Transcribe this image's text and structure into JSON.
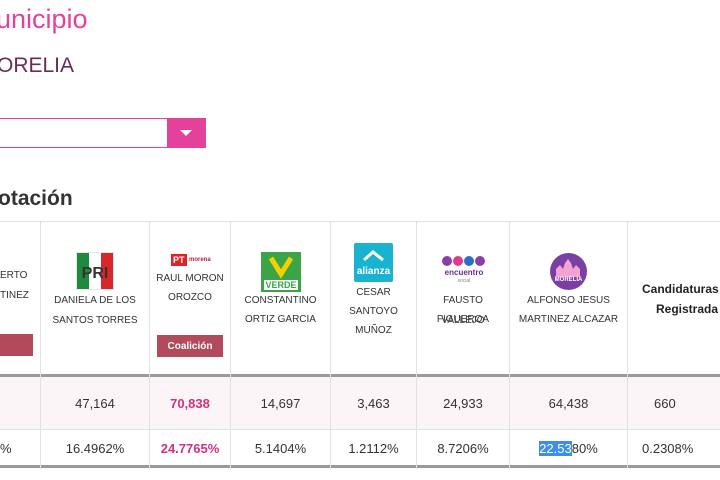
{
  "page": {
    "title": "unicipio",
    "subtitle": "ORELIA",
    "section_title": "otación"
  },
  "colors": {
    "accent": "#e4429a",
    "subtitle": "#6b2b57",
    "winner": "#d0327f",
    "coalition_badge": "#b24a5b",
    "selection": "#3d8ee6"
  },
  "select": {
    "value": "",
    "button_icon": "chevron-down-icon"
  },
  "table": {
    "candidates": [
      {
        "party": "partial-candidate",
        "logo_icon": "",
        "name_lines": [
          "ERTO",
          "TINEZ"
        ],
        "badge": "",
        "votes": "",
        "percent": "%"
      },
      {
        "party": "PRI",
        "logo_icon": "pri-logo-icon",
        "name_lines": [
          "DANIELA DE LOS",
          "SANTOS TORRES"
        ],
        "badge": "",
        "votes": "47,164",
        "percent": "16.4962%"
      },
      {
        "party": "PT",
        "logo_icon": "pt-morena-logo-icon",
        "logo_text": "PT",
        "logo_sub": "morena",
        "name_lines": [
          "RAUL MORON",
          "OROZCO"
        ],
        "badge": "Coalición",
        "votes": "70,838",
        "percent": "24.7765%",
        "winner": true
      },
      {
        "party": "VERDE",
        "logo_icon": "verde-logo-icon",
        "logo_text": "VERDE",
        "name_lines": [
          "CONSTANTINO",
          "ORTIZ GARCIA"
        ],
        "badge": "",
        "votes": "14,697",
        "percent": "5.1404%"
      },
      {
        "party": "alianza",
        "logo_icon": "alianza-logo-icon",
        "logo_text": "alianza",
        "name_lines": [
          "CESAR",
          "SANTOYO",
          "MUÑOZ"
        ],
        "badge": "",
        "votes": "3,463",
        "percent": "1.2112%"
      },
      {
        "party": "encuentro social",
        "logo_icon": "encuentro-social-logo-icon",
        "logo_text": "encuentro",
        "logo_sub": "social",
        "name_lines": [
          "FAUSTO VALLEJO",
          "FIGUEROA"
        ],
        "badge": "",
        "votes": "24,933",
        "percent": "8.7206%"
      },
      {
        "party": "MORELIA",
        "logo_icon": "morelia-logo-icon",
        "logo_text": "MORELIA",
        "name_lines": [
          "ALFONSO JESUS",
          "MARTINEZ ALCAZAR"
        ],
        "badge": "",
        "votes": "64,438",
        "percent_selected": "22.53",
        "percent_rest": "80%"
      }
    ],
    "registered": {
      "header_lines": [
        "Candidaturas",
        "Registrada"
      ],
      "votes": "660",
      "percent": "0.2308%"
    }
  }
}
